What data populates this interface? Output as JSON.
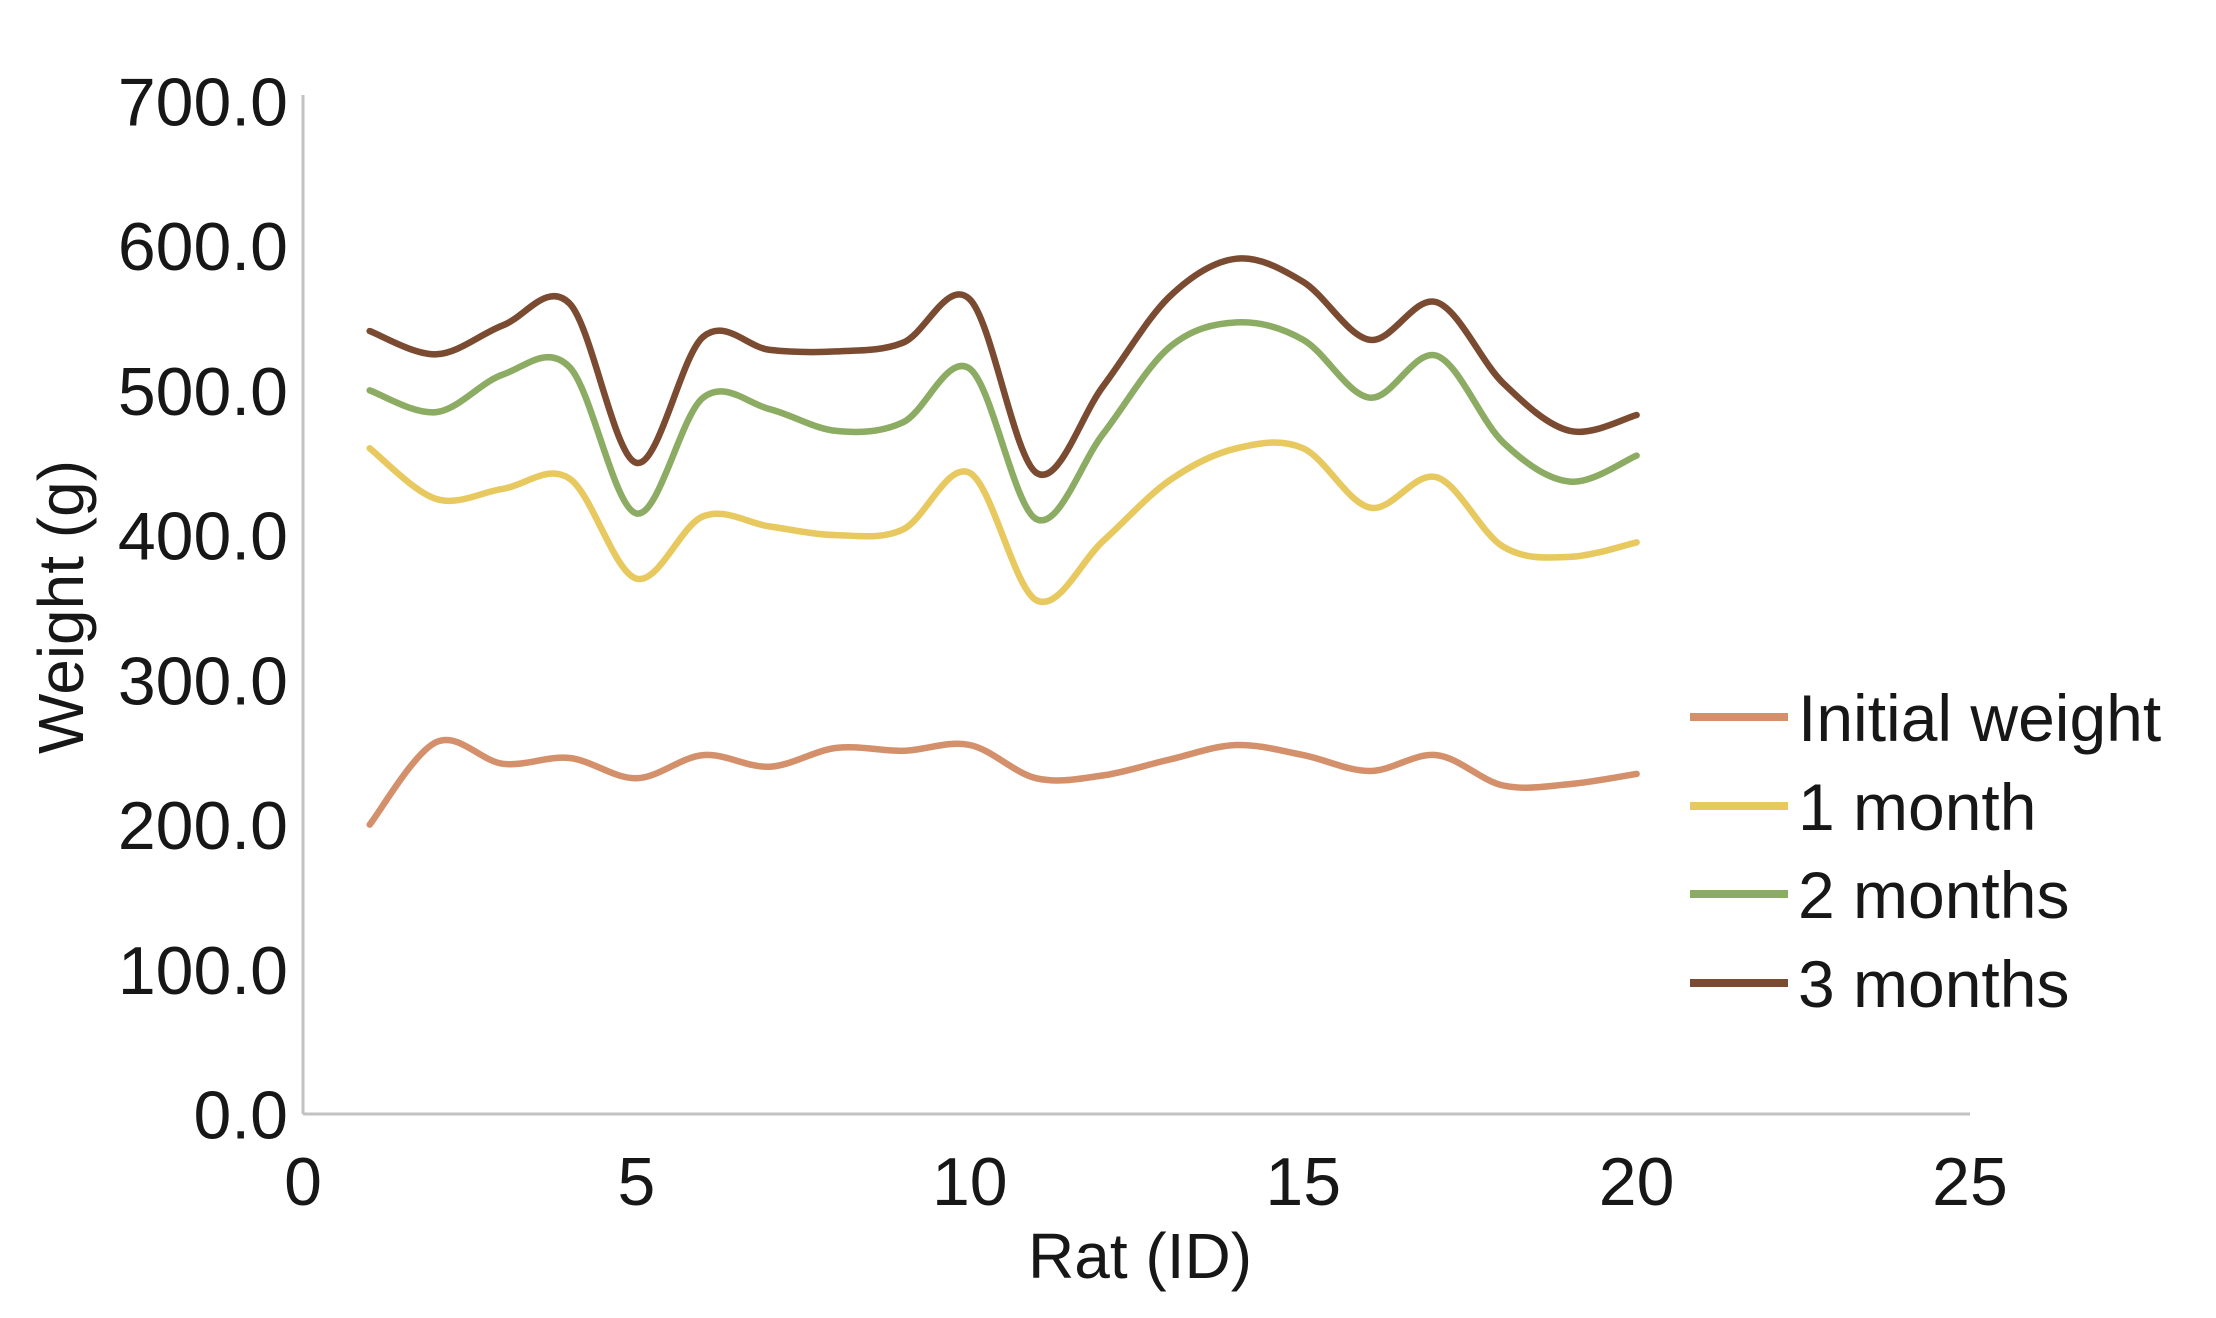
{
  "chart_data": {
    "type": "line",
    "title": "",
    "xlabel": "Rat (ID)",
    "ylabel": "Weight (g)",
    "xlim": [
      0,
      25
    ],
    "ylim": [
      0.0,
      700.0
    ],
    "x_ticks": [
      0,
      5,
      10,
      15,
      20,
      25
    ],
    "y_ticks": [
      "700.0",
      "600.0",
      "500.0",
      "400.0",
      "300.0",
      "200.0",
      "100.0",
      "0.0"
    ],
    "grid": false,
    "legend_position": "right",
    "line_style": "smooth",
    "x": [
      1,
      2,
      3,
      4,
      5,
      6,
      7,
      8,
      9,
      10,
      11,
      12,
      13,
      14,
      15,
      16,
      17,
      18,
      19,
      20
    ],
    "series": [
      {
        "name": "Initial weight",
        "color": "#D3906B",
        "values": [
          200,
          257,
          242,
          246,
          232,
          248,
          240,
          253,
          251,
          255,
          232,
          234,
          245,
          255,
          248,
          237,
          248,
          227,
          228,
          235
        ]
      },
      {
        "name": "1 month",
        "color": "#E7C95F",
        "values": [
          460,
          425,
          432,
          439,
          370,
          413,
          406,
          400,
          404,
          443,
          355,
          396,
          438,
          460,
          460,
          419,
          440,
          392,
          385,
          395
        ]
      },
      {
        "name": "2 months",
        "color": "#8CAC64",
        "values": [
          500,
          485,
          511,
          516,
          415,
          495,
          487,
          472,
          478,
          515,
          411,
          470,
          530,
          547,
          535,
          495,
          524,
          464,
          437,
          455
        ]
      },
      {
        "name": "3 months",
        "color": "#7A4B30",
        "values": [
          541,
          525,
          545,
          560,
          450,
          537,
          528,
          527,
          533,
          563,
          443,
          503,
          565,
          591,
          575,
          535,
          561,
          505,
          472,
          483
        ]
      }
    ]
  },
  "style": {
    "background": "#FFFFFF",
    "axis_line_color": "#C2C2C2",
    "text_color": "#171717"
  }
}
